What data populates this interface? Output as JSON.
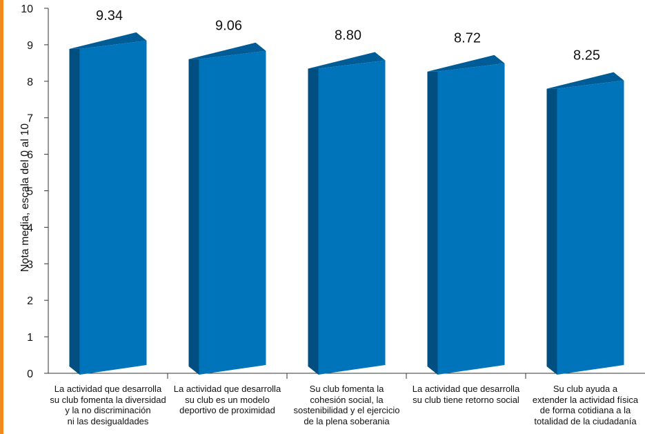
{
  "chart_data": {
    "type": "bar",
    "ylabel": "Nota media, escala del 0 al 10",
    "ylim": [
      0,
      10
    ],
    "yticks": [
      0,
      1,
      2,
      3,
      4,
      5,
      6,
      7,
      8,
      9,
      10
    ],
    "categories": [
      [
        "La actividad que desarrolla",
        "su club fomenta la diversidad",
        "y la no discriminación",
        "ni las desigualdades"
      ],
      [
        "La actividad que desarrolla",
        "su club es un modelo",
        "deportivo de proximidad"
      ],
      [
        "Su club fomenta la",
        "cohesión social, la",
        "sostenibilidad y el ejercicio",
        "de la plena soberania"
      ],
      [
        "La actividad que desarrolla",
        "su club tiene retorno social"
      ],
      [
        "Su club ayuda a",
        "extender la actividad física",
        "de forma cotidiana a la",
        "totalidad de la ciudadanía"
      ]
    ],
    "values": [
      9.34,
      9.06,
      8.8,
      8.72,
      8.25
    ],
    "value_labels": [
      "9.34",
      "9.06",
      "8.80",
      "8.72",
      "8.25"
    ],
    "bar_style": "3d",
    "colors": {
      "bar_front": "#0074bb",
      "bar_side": "#004f80",
      "bar_top": "#005c97",
      "accent": "#f08a1e",
      "axis": "#333333"
    },
    "grid": false,
    "legend": "none"
  }
}
